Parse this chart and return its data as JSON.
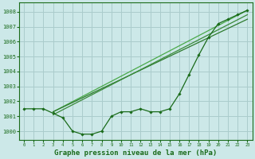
{
  "background_color": "#cce8e8",
  "plot_bg_color": "#cce8e8",
  "grid_color": "#aacccc",
  "line_color_main": "#1a6b1a",
  "xlabel": "Graphe pression niveau de la mer (hPa)",
  "xlabel_fontsize": 6.5,
  "ylim": [
    999.4,
    1008.6
  ],
  "xlim": [
    -0.5,
    23.5
  ],
  "yticks": [
    1000,
    1001,
    1002,
    1003,
    1004,
    1005,
    1006,
    1007,
    1008
  ],
  "xticks": [
    0,
    1,
    2,
    3,
    4,
    5,
    6,
    7,
    8,
    9,
    10,
    11,
    12,
    13,
    14,
    15,
    16,
    17,
    18,
    19,
    20,
    21,
    22,
    23
  ],
  "series": [
    {
      "name": "wavy_markers",
      "x": [
        0,
        1,
        2,
        3,
        4,
        5,
        6,
        7,
        8,
        9,
        10,
        11,
        12,
        13,
        14,
        15,
        16,
        17,
        18,
        19,
        20,
        21,
        22,
        23
      ],
      "y": [
        1001.5,
        1001.5,
        1001.5,
        1001.2,
        1000.9,
        1000.0,
        999.8,
        999.8,
        1000.0,
        1001.0,
        1001.3,
        1001.3,
        1001.5,
        1001.3,
        1001.3,
        1001.5,
        1002.5,
        1003.8,
        1005.1,
        1006.3,
        1007.2,
        1007.5,
        1007.8,
        1008.1
      ],
      "color": "#1a6b1a",
      "linewidth": 0.9,
      "marker": "D",
      "markersize": 1.8,
      "zorder": 4
    },
    {
      "name": "diagonal_upper",
      "x": [
        3,
        23
      ],
      "y": [
        1001.3,
        1008.1
      ],
      "color": "#4aaa4a",
      "linewidth": 0.9,
      "marker": null,
      "markersize": 0,
      "zorder": 2
    },
    {
      "name": "diagonal_lower",
      "x": [
        3,
        23
      ],
      "y": [
        1001.3,
        1007.5
      ],
      "color": "#2d7a2d",
      "linewidth": 0.9,
      "marker": null,
      "markersize": 0,
      "zorder": 2
    },
    {
      "name": "diagonal_middle",
      "x": [
        3,
        23
      ],
      "y": [
        1001.1,
        1007.8
      ],
      "color": "#3a8a3a",
      "linewidth": 0.9,
      "marker": null,
      "markersize": 0,
      "zorder": 2
    }
  ]
}
